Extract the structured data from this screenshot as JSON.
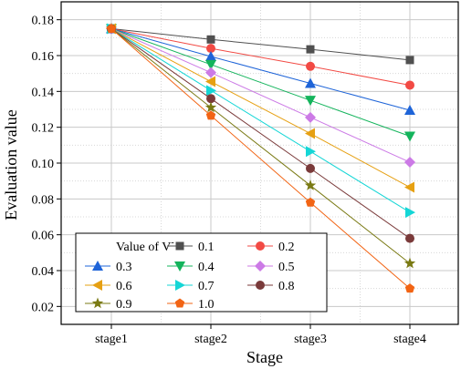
{
  "chart_data": {
    "type": "line",
    "title": "",
    "xlabel": "Stage",
    "ylabel": "Evaluation value",
    "categories": [
      "stage1",
      "stage2",
      "stage3",
      "stage4"
    ],
    "ylim": [
      0.01,
      0.19
    ],
    "yticks": [
      0.02,
      0.04,
      0.06,
      0.08,
      0.1,
      0.12,
      0.14,
      0.16,
      0.18
    ],
    "ytick_labels": [
      "0.02",
      "0.04",
      "0.06",
      "0.08",
      "0.10",
      "0.12",
      "0.14",
      "0.16",
      "0.18"
    ],
    "grid": true,
    "legend": {
      "title": "Value of V",
      "title_superscript": "-",
      "position": "bottom-left",
      "columns": 3
    },
    "series": [
      {
        "name": "0.1",
        "color": "#505050",
        "marker": "square",
        "values": [
          0.175,
          0.169,
          0.1635,
          0.1575
        ]
      },
      {
        "name": "0.2",
        "color": "#f24a44",
        "marker": "circle",
        "values": [
          0.175,
          0.164,
          0.154,
          0.1435
        ]
      },
      {
        "name": "0.3",
        "color": "#1e64d8",
        "marker": "triangle-up",
        "values": [
          0.175,
          0.1595,
          0.1445,
          0.1295
        ]
      },
      {
        "name": "0.4",
        "color": "#14b45c",
        "marker": "triangle-down",
        "values": [
          0.175,
          0.155,
          0.135,
          0.115
        ]
      },
      {
        "name": "0.5",
        "color": "#cc7ae6",
        "marker": "diamond",
        "values": [
          0.175,
          0.1505,
          0.1255,
          0.1005
        ]
      },
      {
        "name": "0.6",
        "color": "#e6a012",
        "marker": "triangle-left",
        "values": [
          0.175,
          0.1455,
          0.1165,
          0.0865
        ]
      },
      {
        "name": "0.7",
        "color": "#14d6d6",
        "marker": "triangle-right",
        "values": [
          0.175,
          0.1405,
          0.1065,
          0.0725
        ]
      },
      {
        "name": "0.8",
        "color": "#7a3a3a",
        "marker": "circle",
        "values": [
          0.175,
          0.136,
          0.097,
          0.058
        ]
      },
      {
        "name": "0.9",
        "color": "#7a7a14",
        "marker": "star",
        "values": [
          0.175,
          0.131,
          0.0875,
          0.044
        ]
      },
      {
        "name": "1.0",
        "color": "#f26414",
        "marker": "pentagon",
        "values": [
          0.175,
          0.1265,
          0.078,
          0.03
        ]
      }
    ],
    "legend_order": [
      "0.1",
      "0.2",
      "0.3",
      "0.4",
      "0.5",
      "0.6",
      "0.7",
      "0.8",
      "0.9",
      "1.0"
    ]
  }
}
